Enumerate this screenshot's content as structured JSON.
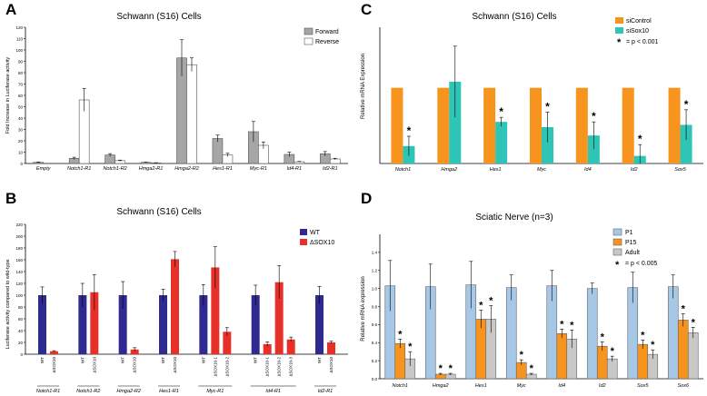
{
  "chart_data": [
    {
      "id": "A",
      "panel_label": "A",
      "type": "bar",
      "title": "Schwann (S16) Cells",
      "ylabel": "Fold Increase in Luciferase activity",
      "xlabel": "",
      "ylim": [
        0,
        120
      ],
      "yticks": [
        0,
        10,
        20,
        30,
        40,
        50,
        60,
        70,
        80,
        90,
        100,
        110,
        120
      ],
      "categories": [
        "Empty",
        "Notch1-R1",
        "Notch1-R2",
        "Hmga2-R1",
        "Hmga2-R2",
        "Hes1-R1",
        "Myc-R1",
        "Id4-R1",
        "Id2-R1"
      ],
      "series": [
        {
          "name": "Forward",
          "color": "#a6a6a6",
          "values": [
            1,
            4.5,
            7.5,
            1,
            93,
            22,
            28,
            8,
            8.5
          ],
          "errors": [
            0.3,
            1,
            1.2,
            0.2,
            16,
            3,
            9,
            2,
            2
          ]
        },
        {
          "name": "Reverse",
          "color": "#ffffff",
          "values": [
            null,
            56,
            2.5,
            0.5,
            87,
            7.5,
            16,
            1.5,
            4
          ],
          "errors": [
            null,
            10,
            0.5,
            0.2,
            6,
            1.5,
            3,
            0.3,
            0.6
          ]
        }
      ],
      "legend": "top-right"
    },
    {
      "id": "B",
      "panel_label": "B",
      "type": "bar",
      "title": "Schwann (S16) Cells",
      "ylabel": "Luciferase activity compared to wild-type",
      "ylim": [
        0,
        220
      ],
      "yticks": [
        0,
        20,
        40,
        60,
        80,
        100,
        120,
        140,
        160,
        180,
        200,
        220
      ],
      "legend": "top-right",
      "legend_items": [
        {
          "name": "WT",
          "color": "#2e2a8f"
        },
        {
          "name": "ΔSOX10",
          "color": "#e8302a"
        }
      ],
      "groups": [
        {
          "name": "Notch1-R1",
          "bars": [
            {
              "label": "WT",
              "value": 100,
              "error": 14,
              "color": "#2e2a8f"
            },
            {
              "label": "ΔSOX10",
              "value": 5,
              "error": 1,
              "color": "#e8302a"
            }
          ]
        },
        {
          "name": "Notch1-R2",
          "bars": [
            {
              "label": "WT",
              "value": 100,
              "error": 20,
              "color": "#2e2a8f"
            },
            {
              "label": "ΔSOX10",
              "value": 105,
              "error": 30,
              "color": "#e8302a"
            }
          ]
        },
        {
          "name": "Hmga2-R2",
          "bars": [
            {
              "label": "WT",
              "value": 100,
              "error": 23,
              "color": "#2e2a8f"
            },
            {
              "label": "ΔSOX10",
              "value": 8,
              "error": 3,
              "color": "#e8302a"
            }
          ]
        },
        {
          "name": "Hes1-R1",
          "bars": [
            {
              "label": "WT",
              "value": 100,
              "error": 10,
              "color": "#2e2a8f"
            },
            {
              "label": "ΔSOX10",
              "value": 161,
              "error": 13,
              "color": "#e8302a"
            }
          ]
        },
        {
          "name": "Myc-R1",
          "bars": [
            {
              "label": "WT",
              "value": 100,
              "error": 18,
              "color": "#2e2a8f"
            },
            {
              "label": "ΔSOX10-1",
              "value": 147,
              "error": 35,
              "color": "#e8302a"
            },
            {
              "label": "ΔSOX10-2",
              "value": 38,
              "error": 7,
              "color": "#e8302a"
            }
          ]
        },
        {
          "name": "Id4-R1",
          "bars": [
            {
              "label": "WT",
              "value": 100,
              "error": 17,
              "color": "#2e2a8f"
            },
            {
              "label": "ΔSOX10-1",
              "value": 17,
              "error": 4,
              "color": "#e8302a"
            },
            {
              "label": "ΔSOX10-2",
              "value": 122,
              "error": 28,
              "color": "#e8302a"
            },
            {
              "label": "ΔSOX10-3",
              "value": 25,
              "error": 4,
              "color": "#e8302a"
            }
          ]
        },
        {
          "name": "Id2-R1",
          "bars": [
            {
              "label": "WT",
              "value": 100,
              "error": 15,
              "color": "#2e2a8f"
            },
            {
              "label": "ΔSOX10",
              "value": 20,
              "error": 2,
              "color": "#e8302a"
            }
          ]
        }
      ]
    },
    {
      "id": "C",
      "panel_label": "C",
      "type": "bar",
      "title": "Schwann (S16) Cells",
      "ylabel": "Relative mRNA Expression",
      "ylim": [
        0,
        1.8
      ],
      "categories": [
        "Notch1",
        "Hmga2",
        "Hes1",
        "Myc",
        "Id4",
        "Id2",
        "Sox5"
      ],
      "series": [
        {
          "name": "siControl",
          "color": "#f7941d",
          "values": [
            1,
            1,
            1,
            1,
            1,
            1,
            1
          ],
          "errors": [
            0,
            0,
            0,
            0,
            0,
            0,
            0
          ]
        },
        {
          "name": "siSox10",
          "color": "#2ec4b6",
          "values": [
            0.23,
            1.08,
            0.55,
            0.48,
            0.37,
            0.1,
            0.51
          ],
          "errors": [
            0.13,
            0.47,
            0.06,
            0.2,
            0.18,
            0.15,
            0.2
          ]
        }
      ],
      "significant": [
        true,
        false,
        true,
        true,
        true,
        true,
        true
      ],
      "star_label": "= p < 0.001",
      "legend": "top-right"
    },
    {
      "id": "D",
      "panel_label": "D",
      "type": "bar",
      "title": "Sciatic Nerve (n=3)",
      "ylabel": "Relative mRNA expression",
      "ylim": [
        0,
        1.6
      ],
      "yticks": [
        0,
        0.2,
        0.4,
        0.6,
        0.8,
        1.0,
        1.2,
        1.4
      ],
      "categories": [
        "Notch1",
        "Hmga2",
        "Hes1",
        "Myc",
        "Id4",
        "Id2",
        "Sox5",
        "Sox6"
      ],
      "series": [
        {
          "name": "P1",
          "color": "#a7c7e7",
          "values": [
            1.03,
            1.02,
            1.04,
            1.01,
            1.03,
            1.0,
            1.01,
            1.02
          ],
          "errors": [
            0.28,
            0.25,
            0.26,
            0.14,
            0.17,
            0.06,
            0.17,
            0.13
          ]
        },
        {
          "name": "P15",
          "color": "#f7941d",
          "values": [
            0.39,
            0.05,
            0.66,
            0.18,
            0.5,
            0.36,
            0.38,
            0.65
          ],
          "errors": [
            0.05,
            0.01,
            0.1,
            0.03,
            0.05,
            0.05,
            0.05,
            0.07
          ]
        },
        {
          "name": "Adult",
          "color": "#c8c8c8",
          "values": [
            0.22,
            0.05,
            0.66,
            0.05,
            0.44,
            0.22,
            0.27,
            0.51
          ],
          "errors": [
            0.08,
            0.01,
            0.15,
            0.01,
            0.1,
            0.03,
            0.05,
            0.06
          ]
        }
      ],
      "significant_p15": [
        true,
        true,
        true,
        true,
        true,
        true,
        true,
        true
      ],
      "significant_adult": [
        true,
        true,
        true,
        true,
        true,
        true,
        true,
        true
      ],
      "star_label": "= p < 0.005",
      "legend": "top-right"
    }
  ]
}
